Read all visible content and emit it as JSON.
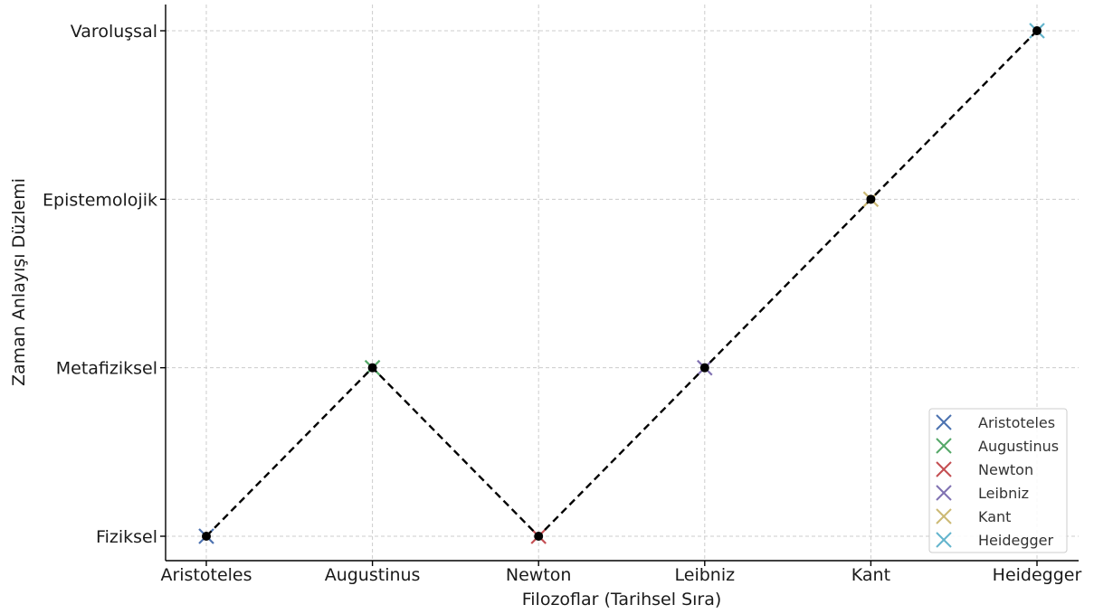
{
  "chart_data": {
    "type": "line",
    "title": "",
    "xlabel": "Filozoflar (Tarihsel Sıra)",
    "ylabel": "Zaman Anlayışı Düzlemi",
    "categories": [
      "Aristoteles",
      "Augustinus",
      "Newton",
      "Leibniz",
      "Kant",
      "Heidegger"
    ],
    "y_categories": [
      "Fiziksel",
      "Metafiziksel",
      "Epistemolojik",
      "Varoluşsal"
    ],
    "values": [
      "Fiziksel",
      "Metafiziksel",
      "Fiziksel",
      "Metafiziksel",
      "Epistemolojik",
      "Varoluşsal"
    ],
    "line_style": "dashed",
    "line_color": "#000000",
    "marker_color": "#000000",
    "grid": true,
    "legend_position": "bottom-right",
    "legend": [
      {
        "name": "Aristoteles",
        "color": "#4C72B0"
      },
      {
        "name": "Augustinus",
        "color": "#55A868"
      },
      {
        "name": "Newton",
        "color": "#C44E52"
      },
      {
        "name": "Leibniz",
        "color": "#8172B2"
      },
      {
        "name": "Kant",
        "color": "#CCB974"
      },
      {
        "name": "Heidegger",
        "color": "#64B5CD"
      }
    ]
  }
}
